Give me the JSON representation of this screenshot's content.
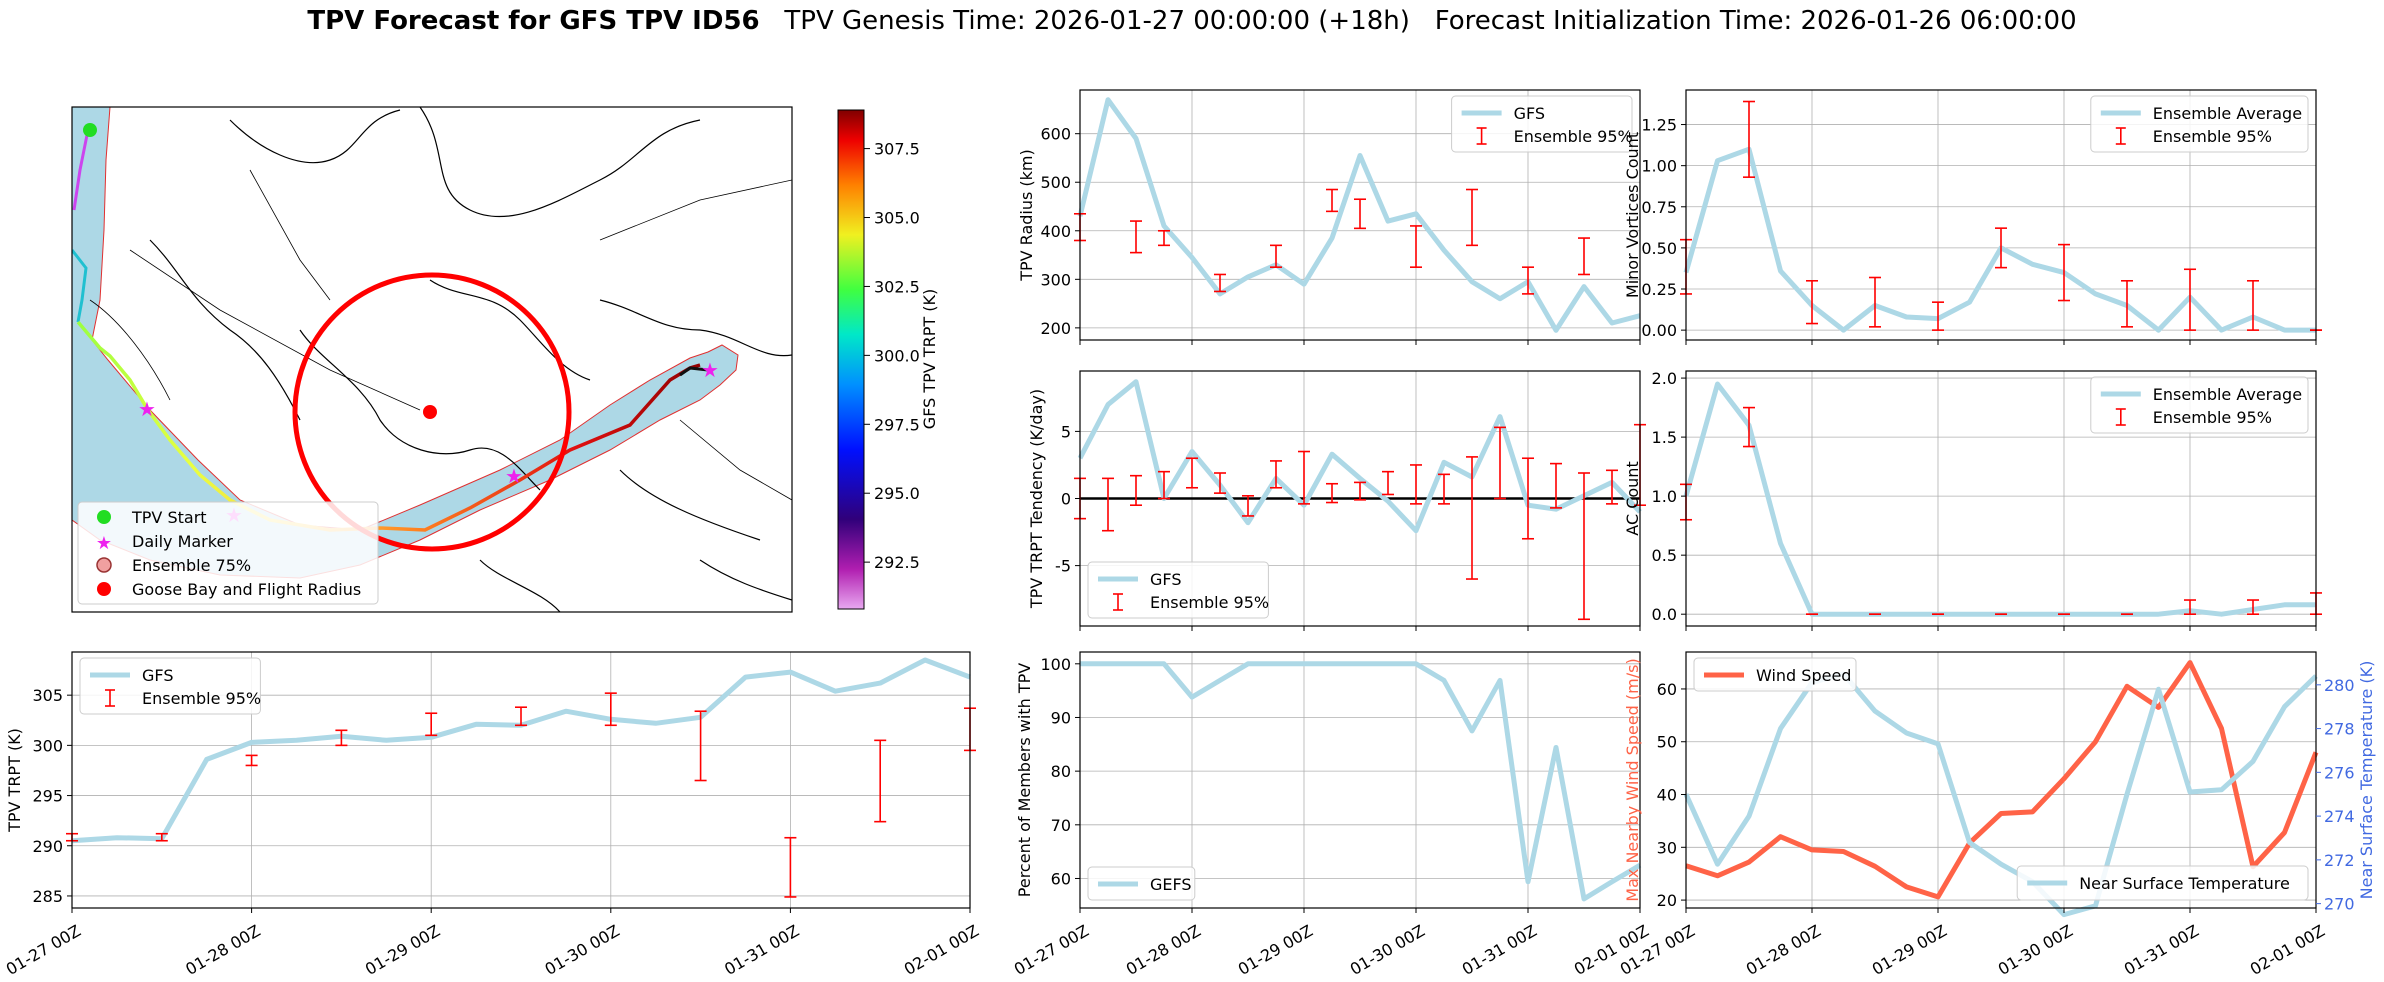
{
  "figure": {
    "title_bold": "TPV Forecast for GFS TPV ID56",
    "title_genesis": "TPV Genesis Time: 2026-01-27 00:00:00 (+18h)",
    "title_init": "Forecast Initialization Time: 2026-01-26 06:00:00"
  },
  "time_ticks": [
    "01-27 00Z",
    "01-28 00Z",
    "01-29 00Z",
    "01-30 00Z",
    "01-31 00Z",
    "02-01 00Z"
  ],
  "colors": {
    "gfs": "#add8e6",
    "ensemble": "#ff0000",
    "wind": "#ff6347",
    "temp_axis": "#4169e1",
    "black": "#000000"
  },
  "map": {
    "legend": [
      "TPV Start",
      "Daily Marker",
      "Ensemble 75%",
      "Goose Bay and Flight Radius"
    ],
    "colorbar": {
      "label": "GFS TPV TRPT (K)",
      "ticks": [
        292.5,
        295.0,
        297.5,
        300.0,
        302.5,
        305.0,
        307.5
      ],
      "range": [
        290.8,
        308.9
      ]
    }
  },
  "chart_data": [
    {
      "id": "radius",
      "type": "line",
      "ylabel": "TPV Radius (km)",
      "ylim": [
        175,
        690
      ],
      "yticks": [
        200,
        300,
        400,
        500,
        600
      ],
      "legend": [
        "GFS",
        "Ensemble 95%"
      ],
      "legend_pos": "upper right",
      "x": [
        0,
        0.25,
        0.5,
        0.75,
        1,
        1.25,
        1.5,
        1.75,
        2,
        2.25,
        2.5,
        2.75,
        3,
        3.25,
        3.5,
        3.75,
        4,
        4.25,
        4.5,
        4.75,
        5
      ],
      "series": [
        {
          "name": "GFS",
          "values": [
            430,
            670,
            590,
            410,
            345,
            270,
            305,
            330,
            290,
            385,
            555,
            420,
            435,
            360,
            295,
            260,
            295,
            195,
            285,
            210,
            225
          ]
        }
      ],
      "errorbars": [
        {
          "x": 0,
          "low": 380,
          "high": 435
        },
        {
          "x": 0.5,
          "low": 355,
          "high": 420
        },
        {
          "x": 0.75,
          "low": 370,
          "high": 400
        },
        {
          "x": 1.25,
          "low": 275,
          "high": 310
        },
        {
          "x": 1.75,
          "low": 325,
          "high": 370
        },
        {
          "x": 2.25,
          "low": 440,
          "high": 485
        },
        {
          "x": 2.5,
          "low": 405,
          "high": 465
        },
        {
          "x": 3,
          "low": 325,
          "high": 410
        },
        {
          "x": 3.5,
          "low": 370,
          "high": 485
        },
        {
          "x": 4,
          "low": 270,
          "high": 325
        },
        {
          "x": 4.5,
          "low": 310,
          "high": 385
        }
      ]
    },
    {
      "id": "minor",
      "type": "line",
      "ylabel": "Minor Vortices Count",
      "ylim": [
        -0.06,
        1.46
      ],
      "yticks": [
        0.0,
        0.25,
        0.5,
        0.75,
        1.0,
        1.25
      ],
      "legend": [
        "Ensemble Average",
        "Ensemble 95%"
      ],
      "legend_pos": "upper right",
      "x": [
        0,
        0.25,
        0.5,
        0.75,
        1,
        1.25,
        1.5,
        1.75,
        2,
        2.25,
        2.5,
        2.75,
        3,
        3.25,
        3.5,
        3.75,
        4,
        4.25,
        4.5,
        4.75,
        5
      ],
      "series": [
        {
          "name": "Ensemble Average",
          "values": [
            0.35,
            1.03,
            1.1,
            0.36,
            0.15,
            0.0,
            0.15,
            0.08,
            0.07,
            0.17,
            0.5,
            0.4,
            0.35,
            0.22,
            0.15,
            0.0,
            0.2,
            0.0,
            0.08,
            0.0,
            0.0
          ]
        }
      ],
      "errorbars": [
        {
          "x": 0,
          "low": 0.22,
          "high": 0.55
        },
        {
          "x": 0.5,
          "low": 0.93,
          "high": 1.39
        },
        {
          "x": 1,
          "low": 0.04,
          "high": 0.3
        },
        {
          "x": 1.5,
          "low": 0.02,
          "high": 0.32
        },
        {
          "x": 2,
          "low": 0.0,
          "high": 0.17
        },
        {
          "x": 2.5,
          "low": 0.38,
          "high": 0.62
        },
        {
          "x": 3,
          "low": 0.18,
          "high": 0.52
        },
        {
          "x": 3.5,
          "low": 0.02,
          "high": 0.3
        },
        {
          "x": 4,
          "low": 0.0,
          "high": 0.37
        },
        {
          "x": 4.5,
          "low": 0.0,
          "high": 0.3
        },
        {
          "x": 5,
          "low": 0.0,
          "high": 0.0
        }
      ]
    },
    {
      "id": "tendency",
      "type": "line",
      "ylabel": "TPV TRPT Tendency (K/day)",
      "ylim": [
        -9.5,
        9.5
      ],
      "yticks": [
        -5,
        0,
        5
      ],
      "legend": [
        "GFS",
        "Ensemble 95%"
      ],
      "legend_pos": "lower left",
      "zero_line": true,
      "x": [
        0,
        0.25,
        0.5,
        0.75,
        1,
        1.25,
        1.5,
        1.75,
        2,
        2.25,
        2.5,
        2.75,
        3,
        3.25,
        3.5,
        3.75,
        4,
        4.25,
        4.5,
        4.75,
        5
      ],
      "series": [
        {
          "name": "GFS",
          "values": [
            3.0,
            7.0,
            8.7,
            0.0,
            3.5,
            1.0,
            -1.8,
            1.5,
            -0.5,
            3.3,
            1.5,
            -0.2,
            -2.4,
            2.7,
            1.6,
            6.1,
            -0.5,
            -0.8,
            0.2,
            1.2,
            -1.0
          ]
        }
      ],
      "errorbars": [
        {
          "x": 0,
          "low": -1.5,
          "high": 1.5
        },
        {
          "x": 0.25,
          "low": -2.4,
          "high": 1.5
        },
        {
          "x": 0.5,
          "low": -0.5,
          "high": 1.7
        },
        {
          "x": 0.75,
          "low": 0.0,
          "high": 2.0
        },
        {
          "x": 1,
          "low": 0.8,
          "high": 3.0
        },
        {
          "x": 1.25,
          "low": 0.4,
          "high": 1.9
        },
        {
          "x": 1.5,
          "low": -1.3,
          "high": 0.2
        },
        {
          "x": 1.75,
          "low": 0.8,
          "high": 2.8
        },
        {
          "x": 2,
          "low": -0.4,
          "high": 3.5
        },
        {
          "x": 2.25,
          "low": -0.3,
          "high": 1.1
        },
        {
          "x": 2.5,
          "low": -0.1,
          "high": 1.2
        },
        {
          "x": 2.75,
          "low": 0.3,
          "high": 2.0
        },
        {
          "x": 3,
          "low": -0.4,
          "high": 2.5
        },
        {
          "x": 3.25,
          "low": -0.4,
          "high": 1.8
        },
        {
          "x": 3.5,
          "low": -6.0,
          "high": 3.1
        },
        {
          "x": 3.75,
          "low": 0.0,
          "high": 5.3
        },
        {
          "x": 4,
          "low": -3.0,
          "high": 3.0
        },
        {
          "x": 4.25,
          "low": -0.7,
          "high": 2.6
        },
        {
          "x": 4.5,
          "low": -9.0,
          "high": 1.9
        },
        {
          "x": 4.75,
          "low": -0.4,
          "high": 2.1
        },
        {
          "x": 5,
          "low": -0.5,
          "high": 5.5
        }
      ]
    },
    {
      "id": "ac",
      "type": "line",
      "ylabel": "AC Count",
      "ylim": [
        -0.1,
        2.06
      ],
      "yticks": [
        0.0,
        0.5,
        1.0,
        1.5,
        2.0
      ],
      "legend": [
        "Ensemble Average",
        "Ensemble 95%"
      ],
      "legend_pos": "upper right",
      "x": [
        0,
        0.25,
        0.5,
        0.75,
        1,
        1.25,
        1.5,
        1.75,
        2,
        2.25,
        2.5,
        2.75,
        3,
        3.25,
        3.5,
        3.75,
        4,
        4.25,
        4.5,
        4.75,
        5
      ],
      "series": [
        {
          "name": "Ensemble Average",
          "values": [
            1.0,
            1.95,
            1.6,
            0.6,
            0.0,
            0.0,
            0.0,
            0.0,
            0.0,
            0.0,
            0.0,
            0.0,
            0.0,
            0.0,
            0.0,
            0.0,
            0.03,
            0.0,
            0.04,
            0.08,
            0.08
          ]
        }
      ],
      "errorbars": [
        {
          "x": 0,
          "low": 0.8,
          "high": 1.1
        },
        {
          "x": 0.5,
          "low": 1.42,
          "high": 1.75
        },
        {
          "x": 1,
          "low": 0.0,
          "high": 0.0
        },
        {
          "x": 1.5,
          "low": 0.0,
          "high": 0.0
        },
        {
          "x": 2,
          "low": 0.0,
          "high": 0.0
        },
        {
          "x": 2.5,
          "low": 0.0,
          "high": 0.0
        },
        {
          "x": 3,
          "low": 0.0,
          "high": 0.0
        },
        {
          "x": 3.5,
          "low": 0.0,
          "high": 0.0
        },
        {
          "x": 4,
          "low": 0.0,
          "high": 0.12
        },
        {
          "x": 4.5,
          "low": 0.0,
          "high": 0.12
        },
        {
          "x": 5,
          "low": 0.0,
          "high": 0.18
        }
      ]
    },
    {
      "id": "trpt",
      "type": "line",
      "ylabel": "TPV TRPT (K)",
      "ylim": [
        283.8,
        309.3
      ],
      "yticks": [
        285,
        290,
        295,
        300,
        305
      ],
      "legend": [
        "GFS",
        "Ensemble 95%"
      ],
      "legend_pos": "upper left",
      "x": [
        0,
        0.25,
        0.5,
        0.75,
        1,
        1.25,
        1.5,
        1.75,
        2,
        2.25,
        2.5,
        2.75,
        3,
        3.25,
        3.5,
        3.75,
        4,
        4.25,
        4.5,
        4.75,
        5
      ],
      "series": [
        {
          "name": "GFS",
          "values": [
            290.5,
            290.8,
            290.7,
            298.6,
            300.3,
            300.5,
            300.9,
            300.5,
            300.8,
            302.1,
            302.0,
            303.4,
            302.6,
            302.2,
            302.8,
            306.8,
            307.3,
            305.4,
            306.2,
            308.5,
            306.8
          ]
        }
      ],
      "errorbars": [
        {
          "x": 0,
          "low": 290.5,
          "high": 291.2
        },
        {
          "x": 0.5,
          "low": 290.5,
          "high": 291.2
        },
        {
          "x": 1,
          "low": 298.0,
          "high": 299.0
        },
        {
          "x": 1.5,
          "low": 300.0,
          "high": 301.5
        },
        {
          "x": 2,
          "low": 301.0,
          "high": 303.2
        },
        {
          "x": 2.5,
          "low": 302.0,
          "high": 303.8
        },
        {
          "x": 3,
          "low": 302.0,
          "high": 305.2
        },
        {
          "x": 3.5,
          "low": 296.5,
          "high": 303.4
        },
        {
          "x": 4,
          "low": 284.9,
          "high": 290.8
        },
        {
          "x": 4.5,
          "low": 292.4,
          "high": 300.5
        },
        {
          "x": 5,
          "low": 299.5,
          "high": 303.7
        }
      ]
    },
    {
      "id": "percent",
      "type": "line",
      "ylabel": "Percent of Members with TPV",
      "ylim": [
        54.5,
        102.2
      ],
      "yticks": [
        60,
        70,
        80,
        90,
        100
      ],
      "legend": [
        "GEFS"
      ],
      "legend_pos": "lower left",
      "x": [
        0,
        0.25,
        0.5,
        0.75,
        1,
        1.25,
        1.5,
        1.75,
        2,
        2.25,
        2.5,
        2.75,
        3,
        3.25,
        3.5,
        3.75,
        4,
        4.25,
        4.5,
        4.75,
        5
      ],
      "series": [
        {
          "name": "GEFS",
          "values": [
            100,
            100,
            100,
            100,
            93.8,
            96.9,
            100,
            100,
            100,
            100,
            100,
            100,
            100,
            96.9,
            87.5,
            96.9,
            59.4,
            84.4,
            56.2,
            59.4,
            62.5
          ]
        }
      ],
      "errorbars": []
    },
    {
      "id": "wind_temp",
      "type": "line",
      "ylabel": "Max Nearby Wind Speed (m/s)",
      "ylim": [
        18.5,
        67
      ],
      "yticks": [
        20,
        30,
        40,
        50,
        60
      ],
      "ylabel2": "Near Surface Temperature (K)",
      "ylim2": [
        269.8,
        281.5
      ],
      "yticks2": [
        270,
        272,
        274,
        276,
        278,
        280
      ],
      "legend": [
        "Wind Speed"
      ],
      "legend2": [
        "Near Surface Temperature"
      ],
      "x": [
        0,
        0.25,
        0.5,
        0.75,
        1,
        1.25,
        1.5,
        1.75,
        2,
        2.25,
        2.5,
        2.75,
        3,
        3.25,
        3.5,
        3.75,
        4,
        4.25,
        4.5,
        4.75,
        5
      ],
      "series": [
        {
          "name": "Wind Speed",
          "axis": "left",
          "values": [
            26.5,
            24.6,
            27.2,
            32.0,
            29.5,
            29.2,
            26.4,
            22.5,
            20.6,
            30.8,
            36.4,
            36.7,
            43.0,
            50.0,
            60.5,
            56.5,
            65.0,
            52.5,
            26.3,
            32.8,
            48.0
          ]
        },
        {
          "name": "Near Surface Temperature",
          "axis": "right",
          "values": [
            275.0,
            271.8,
            274.0,
            278.0,
            280.1,
            280.5,
            278.8,
            277.8,
            277.3,
            272.8,
            271.8,
            271.0,
            269.5,
            269.9,
            275.0,
            279.8,
            275.1,
            275.2,
            276.5,
            279.0,
            280.4
          ]
        }
      ],
      "errorbars": []
    }
  ]
}
